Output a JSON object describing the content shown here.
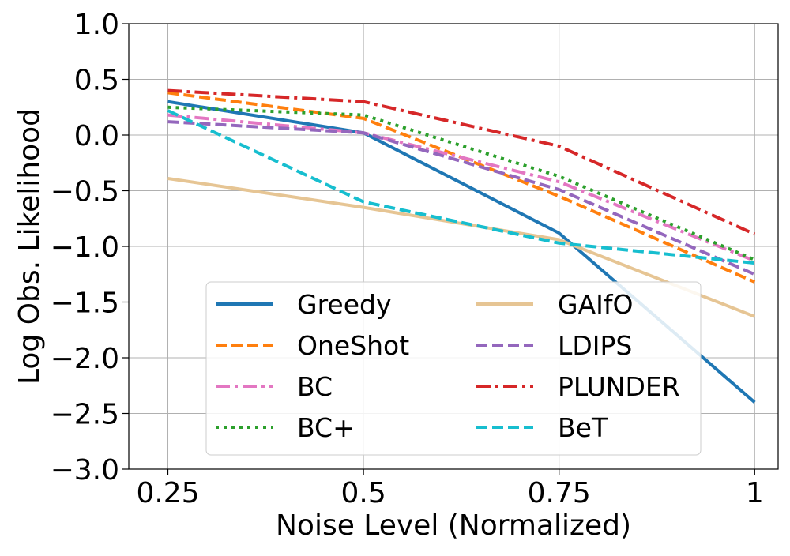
{
  "chart_data": {
    "type": "line",
    "title": "",
    "xlabel": "Noise Level (Normalized)",
    "ylabel": "Log Obs. Likelihood",
    "xlim": [
      0.2,
      1.03
    ],
    "ylim": [
      -3.0,
      1.0
    ],
    "x": [
      0.25,
      0.5,
      0.75,
      1.0
    ],
    "xtick_values": [
      0.25,
      0.5,
      0.75,
      1.0
    ],
    "xtick_labels": [
      "0.25",
      "0.5",
      "0.75",
      "1"
    ],
    "ytick_values": [
      1.0,
      0.5,
      0.0,
      -0.5,
      -1.0,
      -1.5,
      -2.0,
      -2.5,
      -3.0
    ],
    "ytick_labels": [
      "1.0",
      "0.5",
      "0.0",
      "−0.5",
      "−1.0",
      "−1.5",
      "−2.0",
      "−2.5",
      "−3.0"
    ],
    "grid": true,
    "legend_position": "lower-center",
    "legend_columns": 2,
    "series": [
      {
        "name": "Greedy",
        "color": "#1f77b4",
        "dash": "solid",
        "values": [
          0.3,
          0.02,
          -0.88,
          -2.4
        ]
      },
      {
        "name": "OneShot",
        "color": "#ff7f0e",
        "dash": "dashed",
        "values": [
          0.38,
          0.15,
          -0.55,
          -1.32
        ]
      },
      {
        "name": "BC",
        "color": "#e377c2",
        "dash": "dashdot",
        "values": [
          0.18,
          0.02,
          -0.42,
          -1.13
        ]
      },
      {
        "name": "BC+",
        "color": "#2ca02c",
        "dash": "dotted",
        "values": [
          0.25,
          0.18,
          -0.37,
          -1.12
        ]
      },
      {
        "name": "GAIfO",
        "color": "#e6c594",
        "dash": "solid",
        "values": [
          -0.39,
          -0.65,
          -0.94,
          -1.63
        ]
      },
      {
        "name": "LDIPS",
        "color": "#9467bd",
        "dash": "dashed",
        "values": [
          0.12,
          0.02,
          -0.49,
          -1.25
        ]
      },
      {
        "name": "PLUNDER",
        "color": "#d62728",
        "dash": "dashdot",
        "values": [
          0.4,
          0.3,
          -0.1,
          -0.89
        ]
      },
      {
        "name": "BeT",
        "color": "#17becf",
        "dash": "dashed",
        "values": [
          0.22,
          -0.6,
          -0.97,
          -1.15
        ]
      }
    ]
  }
}
